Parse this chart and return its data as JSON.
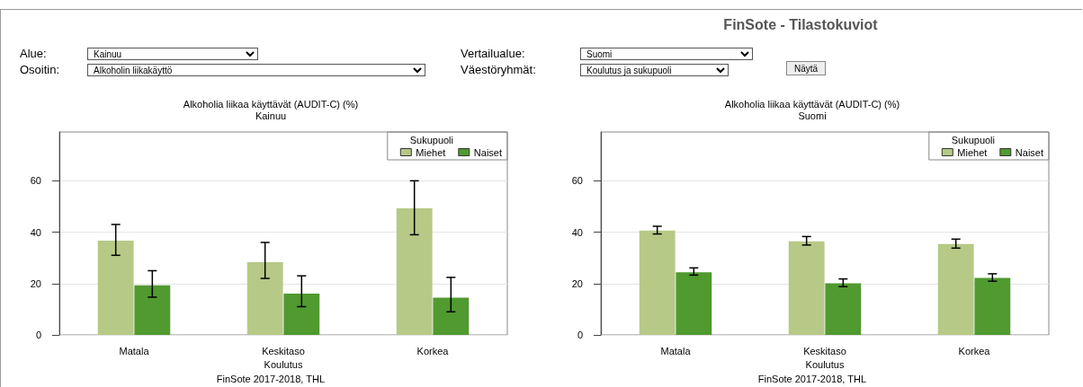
{
  "chart_data": [
    {
      "type": "other",
      "title": "FinSote - Tilastokuviot",
      "annotations": [
        "Alue:",
        "Kainuu",
        "Vertailualue:",
        "Suomi",
        "Osoitin:",
        "Alkoholin liikakäyttö",
        "Väestöryhmät:",
        "Koulutus ja sukupuoli",
        "Näytä"
      ]
    },
    {
      "type": "bar",
      "title": "Alkoholia liikaa käyttävät (AUDIT-C) (%)",
      "subtitle": "Kainuu",
      "xlabel": "Koulutus",
      "legend_title": "Sukupuoli",
      "annotations": [
        "FinSote 2017-2018, THL"
      ],
      "categories": [
        "Matala",
        "Keskitaso",
        "Korkea"
      ],
      "series": [
        {
          "name": "Miehet",
          "color": "#b6c986",
          "values": [
            36.7,
            28.3,
            49.3
          ],
          "errors": [
            [
              31,
              43
            ],
            [
              22,
              36
            ],
            [
              39,
              60
            ]
          ]
        },
        {
          "name": "Naiset",
          "color": "#509a30",
          "values": [
            19.3,
            16.1,
            14.5
          ],
          "errors": [
            [
              14.7,
              25
            ],
            [
              11,
              23
            ],
            [
              9,
              22.4
            ]
          ]
        }
      ],
      "ylim": [
        0,
        79
      ],
      "yticks": [
        0,
        20,
        40,
        60
      ],
      "grid": "y",
      "legend": "top right"
    },
    {
      "type": "bar",
      "title": "Alkoholia liikaa käyttävät (AUDIT-C) (%)",
      "subtitle": "Suomi",
      "xlabel": "Koulutus",
      "legend_title": "Sukupuoli",
      "annotations": [
        "FinSote 2017-2018, THL"
      ],
      "categories": [
        "Matala",
        "Keskitaso",
        "Korkea"
      ],
      "series": [
        {
          "name": "Miehet",
          "color": "#b6c986",
          "values": [
            40.6,
            36.4,
            35.4
          ],
          "errors": [
            [
              39.3,
              42.3
            ],
            [
              35,
              38.3
            ],
            [
              33.8,
              37.3
            ]
          ]
        },
        {
          "name": "Naiset",
          "color": "#509a30",
          "values": [
            24.4,
            20.1,
            22.2
          ],
          "errors": [
            [
              23.3,
              26.1
            ],
            [
              18.8,
              21.8
            ],
            [
              20.9,
              23.8
            ]
          ]
        }
      ],
      "ylim": [
        0,
        79
      ],
      "yticks": [
        0,
        20,
        40,
        60
      ],
      "grid": "y",
      "legend": "top right"
    }
  ]
}
